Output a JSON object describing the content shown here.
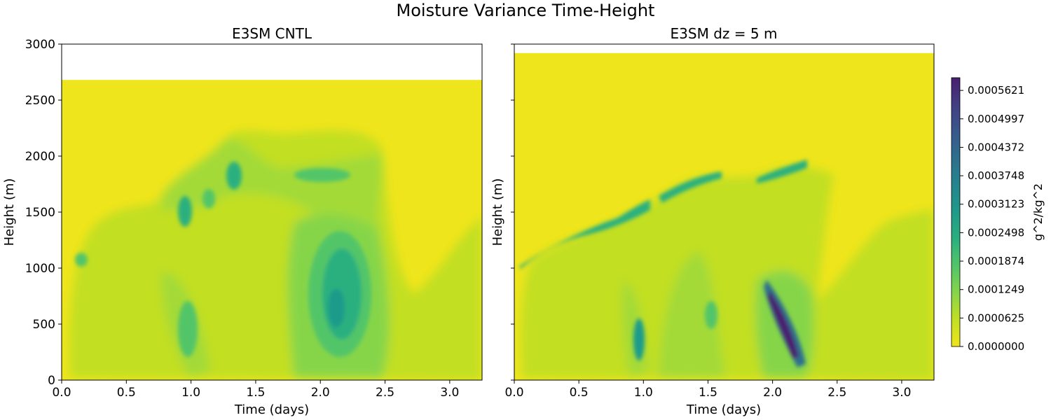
{
  "figure": {
    "suptitle": "Moisture Variance Time-Height"
  },
  "chart_data": [
    {
      "type": "heatmap",
      "title": "E3SM CNTL",
      "xlabel": "Time (days)",
      "ylabel": "Height (m)",
      "xlim": [
        0,
        3.25
      ],
      "ylim": [
        0,
        3000
      ],
      "xticks": [
        "0.0",
        "0.5",
        "1.0",
        "1.5",
        "2.0",
        "2.5",
        "3.0"
      ],
      "xtick_values": [
        0,
        0.5,
        1.0,
        1.5,
        2.0,
        2.5,
        3.0
      ],
      "yticks": [
        "0",
        "500",
        "1000",
        "1500",
        "2000",
        "2500",
        "3000"
      ],
      "ytick_values": [
        0,
        500,
        1000,
        1500,
        2000,
        2500,
        3000
      ],
      "data_top": 2680,
      "features": [
        {
          "name": "pbl-top-early",
          "t": 0.15,
          "z": 1060,
          "value": 0.00017
        },
        {
          "name": "pbl-top-0.3",
          "t": 0.28,
          "z": 1180,
          "value": 0.00013
        },
        {
          "name": "pbl-top-0.95",
          "t": 0.95,
          "z": 1460,
          "value": 0.00029
        },
        {
          "name": "pbl-top-1.15",
          "t": 1.15,
          "z": 1610,
          "value": 0.00024
        },
        {
          "name": "pbl-top-1.35",
          "t": 1.35,
          "z": 1810,
          "value": 0.00031
        },
        {
          "name": "pbl-band-1.8-2.5",
          "t": 2.1,
          "z": 1800,
          "value": 0.00018
        },
        {
          "name": "deep-mixing-day2",
          "t": 2.2,
          "z": 750,
          "value": 0.00027
        },
        {
          "name": "low-level-day1",
          "t": 1.0,
          "z": 450,
          "value": 0.00018
        }
      ]
    },
    {
      "type": "heatmap",
      "title": "E3SM dz = 5 m",
      "xlabel": "Time (days)",
      "ylabel": "Height (m)",
      "xlim": [
        0,
        3.25
      ],
      "ylim": [
        0,
        3000
      ],
      "xticks": [
        "0.0",
        "0.5",
        "1.0",
        "1.5",
        "2.0",
        "2.5",
        "3.0"
      ],
      "xtick_values": [
        0,
        0.5,
        1.0,
        1.5,
        2.0,
        2.5,
        3.0
      ],
      "yticks_shown": false,
      "data_top": 2920,
      "features": [
        {
          "name": "pbl-top-early",
          "t": 0.3,
          "z": 1230,
          "value": 0.00017
        },
        {
          "name": "pbl-top-0.95",
          "t": 0.95,
          "z": 1480,
          "value": 0.00033
        },
        {
          "name": "pbl-top-1.4",
          "t": 1.4,
          "z": 1780,
          "value": 0.00031
        },
        {
          "name": "pbl-top-2.1",
          "t": 2.1,
          "z": 1880,
          "value": 0.0003
        },
        {
          "name": "low-level-day1",
          "t": 0.98,
          "z": 320,
          "value": 0.00031
        },
        {
          "name": "deep-mixing-day2",
          "t": 2.15,
          "z": 420,
          "value": 0.00058
        }
      ]
    }
  ],
  "colorbar": {
    "label": "g^2/kg^2",
    "min": 0.0,
    "max": 0.00059,
    "ticks": [
      "0.0000000",
      "0.0000625",
      "0.0001249",
      "0.0001874",
      "0.0002498",
      "0.0003123",
      "0.0003748",
      "0.0004372",
      "0.0004997",
      "0.0005621"
    ],
    "tick_values": [
      0.0,
      6.25e-05,
      0.0001249,
      0.0001874,
      0.0002498,
      0.0003123,
      0.0003748,
      0.0004372,
      0.0004997,
      0.0005621
    ],
    "colormap": "viridis_r"
  }
}
